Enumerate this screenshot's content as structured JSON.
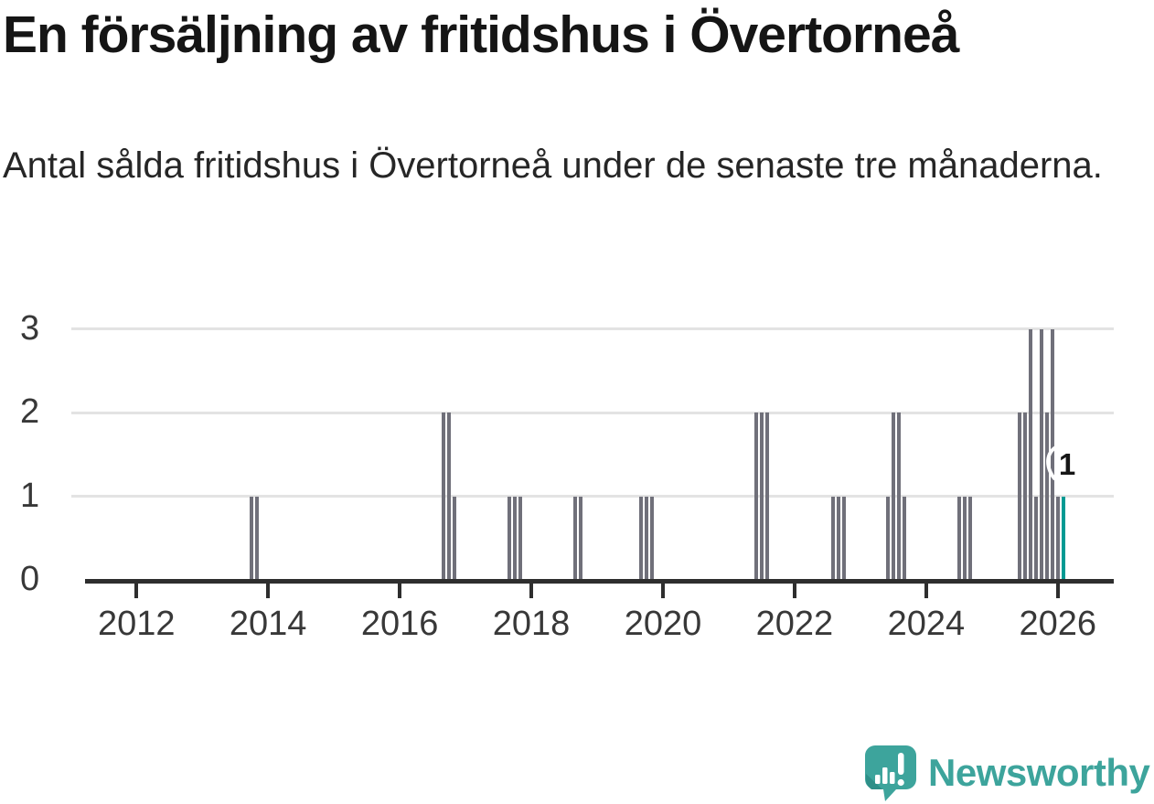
{
  "header": {
    "title": "En försäljning av fritidshus i Övertorneå",
    "subtitle": "Antal sålda fritidshus i Övertorneå under de senaste tre månaderna."
  },
  "footer": {
    "brand": "Newsworthy"
  },
  "colors": {
    "bar": "#70707a",
    "highlight": "#009a93",
    "grid": "#e3e3e3",
    "axis": "#2e2e2e",
    "axis_text": "#383838",
    "brand": "#3da49c"
  },
  "chart_data": {
    "type": "bar",
    "title": "En försäljning av fritidshus i Övertorneå",
    "subtitle": "Antal sålda fritidshus i Övertorneå under de senaste tre månaderna.",
    "xlim": [
      2011.01,
      2026.85
    ],
    "ylim": [
      0,
      3
    ],
    "yticks": [
      0,
      1,
      2,
      3
    ],
    "xticks": [
      2012,
      2014,
      2016,
      2018,
      2020,
      2022,
      2024,
      2026
    ],
    "grid_y": [
      1,
      2,
      3
    ],
    "legend": "none",
    "annotation": {
      "text": "1",
      "date": "2026-02"
    },
    "points": [
      {
        "date": "2013-10",
        "value": 1
      },
      {
        "date": "2013-11",
        "value": 1
      },
      {
        "date": "2016-09",
        "value": 2
      },
      {
        "date": "2016-10",
        "value": 2
      },
      {
        "date": "2016-11",
        "value": 1
      },
      {
        "date": "2017-09",
        "value": 1
      },
      {
        "date": "2017-10",
        "value": 1
      },
      {
        "date": "2017-11",
        "value": 1
      },
      {
        "date": "2018-09",
        "value": 1
      },
      {
        "date": "2018-10",
        "value": 1
      },
      {
        "date": "2019-09",
        "value": 1
      },
      {
        "date": "2019-10",
        "value": 1
      },
      {
        "date": "2019-11",
        "value": 1
      },
      {
        "date": "2021-06",
        "value": 2
      },
      {
        "date": "2021-07",
        "value": 2
      },
      {
        "date": "2021-08",
        "value": 2
      },
      {
        "date": "2022-08",
        "value": 1
      },
      {
        "date": "2022-09",
        "value": 1
      },
      {
        "date": "2022-10",
        "value": 1
      },
      {
        "date": "2023-06",
        "value": 1
      },
      {
        "date": "2023-07",
        "value": 2
      },
      {
        "date": "2023-08",
        "value": 2
      },
      {
        "date": "2023-09",
        "value": 1
      },
      {
        "date": "2024-07",
        "value": 1
      },
      {
        "date": "2024-08",
        "value": 1
      },
      {
        "date": "2024-09",
        "value": 1
      },
      {
        "date": "2025-06",
        "value": 2
      },
      {
        "date": "2025-07",
        "value": 2
      },
      {
        "date": "2025-08",
        "value": 3
      },
      {
        "date": "2025-09",
        "value": 1
      },
      {
        "date": "2025-10",
        "value": 3
      },
      {
        "date": "2025-11",
        "value": 2
      },
      {
        "date": "2025-12",
        "value": 3
      },
      {
        "date": "2026-01",
        "value": 1
      },
      {
        "date": "2026-02",
        "value": 1,
        "highlight": true
      }
    ]
  }
}
